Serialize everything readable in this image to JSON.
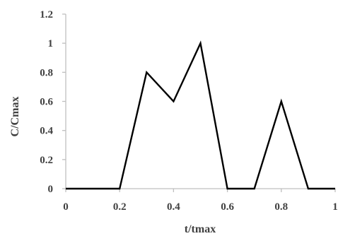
{
  "chart_data": {
    "type": "line",
    "title": "",
    "xlabel": "t/tmax",
    "ylabel": "C/Cmax",
    "xlim": [
      0,
      1
    ],
    "ylim": [
      0,
      1.2
    ],
    "x_ticks": [
      "0",
      "0.2",
      "0.4",
      "0.6",
      "0.8",
      "1"
    ],
    "y_ticks": [
      "0",
      "0.2",
      "0.4",
      "0.6",
      "0.8",
      "1",
      "1.2"
    ],
    "grid": false,
    "legend": "none",
    "series": [
      {
        "color": "#000000",
        "x": [
          0,
          0.2,
          0.3,
          0.4,
          0.5,
          0.6,
          0.7,
          0.8,
          0.9,
          1.0
        ],
        "y": [
          0,
          0,
          0.8,
          0.6,
          1.0,
          0,
          0,
          0.6,
          0,
          0
        ]
      }
    ]
  }
}
